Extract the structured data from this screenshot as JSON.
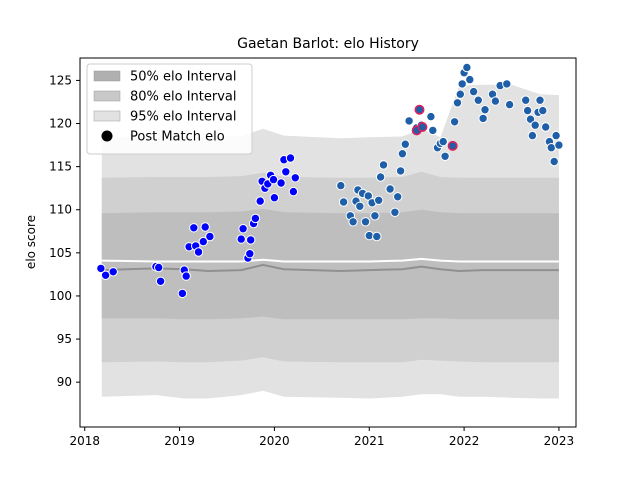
{
  "chart_data": {
    "type": "scatter",
    "title": "Gaetan Barlot: elo History",
    "xlabel": "",
    "ylabel": "elo score",
    "xlim": [
      2017.95,
      2023.18
    ],
    "ylim": [
      84.8,
      127.6
    ],
    "x_ticks": [
      2018,
      2019,
      2020,
      2021,
      2022,
      2023
    ],
    "x_tick_labels": [
      "2018",
      "2019",
      "2020",
      "2021",
      "2022",
      "2023"
    ],
    "y_ticks": [
      90,
      95,
      100,
      105,
      110,
      115,
      120,
      125
    ],
    "grid": false,
    "legend_position": "top-left",
    "legend": [
      {
        "label": "50% elo Interval",
        "kind": "patch",
        "color": "#b0b0b0"
      },
      {
        "label": "80% elo Interval",
        "kind": "patch",
        "color": "#c8c8c8"
      },
      {
        "label": "95% elo Interval",
        "kind": "patch",
        "color": "#e2e2e2"
      },
      {
        "label": "Post Match elo",
        "kind": "marker",
        "color": "#000000"
      }
    ],
    "band_x": [
      2018.18,
      2018.75,
      2019.05,
      2019.3,
      2019.65,
      2019.88,
      2020.1,
      2020.7,
      2021.0,
      2021.35,
      2021.55,
      2021.75,
      2021.95,
      2022.2,
      2022.5,
      2022.8,
      2023.0
    ],
    "intervals": [
      {
        "name": "95% elo Interval",
        "color": "#e2e2e2",
        "upper": [
          118.4,
          118.4,
          118.5,
          118.5,
          118.5,
          119.4,
          118.6,
          118.3,
          118.4,
          118.5,
          119.4,
          118.4,
          124.4,
          124.5,
          124.5,
          123.4,
          123.3
        ],
        "lower": [
          88.3,
          88.5,
          88.1,
          88.1,
          88.5,
          89.0,
          88.3,
          88.2,
          88.1,
          88.3,
          88.6,
          88.6,
          88.3,
          88.3,
          88.2,
          88.1,
          88.1
        ]
      },
      {
        "name": "80% elo Interval",
        "color": "#d0d0d0",
        "upper": [
          113.7,
          113.8,
          113.8,
          113.8,
          113.9,
          114.3,
          113.8,
          113.7,
          113.7,
          113.8,
          114.4,
          113.8,
          113.7,
          113.7,
          113.7,
          113.7,
          113.7
        ],
        "lower": [
          92.3,
          92.4,
          92.3,
          92.3,
          92.5,
          92.9,
          92.4,
          92.3,
          92.3,
          92.3,
          92.6,
          92.5,
          92.4,
          92.3,
          92.3,
          92.3,
          92.3
        ]
      },
      {
        "name": "50% elo Interval",
        "color": "#bebebe",
        "upper": [
          109.6,
          109.7,
          109.7,
          109.7,
          109.8,
          110.1,
          109.7,
          109.6,
          109.6,
          109.7,
          110.0,
          109.7,
          109.6,
          109.6,
          109.6,
          109.6,
          109.6
        ],
        "lower": [
          97.4,
          97.4,
          97.3,
          97.3,
          97.4,
          97.6,
          97.3,
          97.3,
          97.3,
          97.3,
          97.4,
          97.4,
          97.3,
          97.3,
          97.3,
          97.3,
          97.3
        ]
      }
    ],
    "median_line": {
      "color": "#909090",
      "y": [
        103.0,
        103.2,
        103.1,
        102.9,
        103.0,
        103.6,
        103.1,
        102.9,
        103.0,
        103.1,
        103.4,
        103.1,
        102.9,
        103.0,
        103.0,
        103.0,
        103.0
      ]
    },
    "mean_line": {
      "color": "#ffffff",
      "y": [
        104.1,
        104.0,
        104.0,
        104.0,
        104.0,
        104.2,
        104.0,
        104.0,
        104.0,
        104.1,
        104.3,
        104.1,
        104.0,
        104.0,
        104.0,
        104.0,
        104.0
      ]
    },
    "series": [
      {
        "color": "#0000ff",
        "edge": "#ffffff",
        "points": [
          [
            2018.17,
            103.2
          ],
          [
            2018.22,
            102.4
          ],
          [
            2018.3,
            102.8
          ],
          [
            2018.75,
            103.4
          ],
          [
            2018.78,
            103.3
          ],
          [
            2018.8,
            101.7
          ],
          [
            2019.03,
            100.3
          ],
          [
            2019.05,
            103.0
          ],
          [
            2019.07,
            102.3
          ],
          [
            2019.1,
            105.7
          ],
          [
            2019.15,
            107.9
          ],
          [
            2019.17,
            105.8
          ],
          [
            2019.2,
            105.1
          ],
          [
            2019.25,
            106.3
          ],
          [
            2019.27,
            108.0
          ],
          [
            2019.32,
            106.9
          ],
          [
            2019.65,
            106.6
          ],
          [
            2019.67,
            107.8
          ],
          [
            2019.72,
            104.4
          ],
          [
            2019.74,
            104.9
          ],
          [
            2019.75,
            106.5
          ],
          [
            2019.78,
            108.4
          ],
          [
            2019.8,
            109.0
          ],
          [
            2019.85,
            111.0
          ],
          [
            2019.87,
            113.3
          ],
          [
            2019.9,
            112.5
          ],
          [
            2019.93,
            113.0
          ],
          [
            2019.96,
            114.0
          ],
          [
            2019.99,
            113.5
          ],
          [
            2020.0,
            111.4
          ],
          [
            2020.07,
            113.1
          ],
          [
            2020.1,
            115.8
          ],
          [
            2020.12,
            114.4
          ],
          [
            2020.17,
            116.0
          ],
          [
            2020.2,
            112.1
          ],
          [
            2020.22,
            113.7
          ]
        ]
      },
      {
        "color": "#1f5fa8",
        "edge": "#ffffff",
        "points": [
          [
            2020.7,
            112.8
          ],
          [
            2020.73,
            110.9
          ],
          [
            2020.8,
            109.3
          ],
          [
            2020.83,
            108.6
          ],
          [
            2020.86,
            111.0
          ],
          [
            2020.88,
            112.3
          ],
          [
            2020.9,
            110.4
          ],
          [
            2020.93,
            111.9
          ],
          [
            2020.96,
            108.6
          ],
          [
            2020.99,
            111.6
          ],
          [
            2021.0,
            107.0
          ],
          [
            2021.03,
            110.8
          ],
          [
            2021.06,
            109.3
          ],
          [
            2021.08,
            106.9
          ],
          [
            2021.1,
            111.1
          ],
          [
            2021.12,
            113.8
          ],
          [
            2021.15,
            115.2
          ],
          [
            2021.22,
            112.4
          ],
          [
            2021.27,
            109.7
          ],
          [
            2021.3,
            111.5
          ],
          [
            2021.33,
            114.5
          ],
          [
            2021.35,
            116.5
          ],
          [
            2021.38,
            117.6
          ],
          [
            2021.42,
            120.3
          ],
          [
            2021.5,
            119.5
          ],
          [
            2021.55,
            119.8
          ],
          [
            2021.65,
            120.8
          ],
          [
            2021.67,
            119.2
          ],
          [
            2021.72,
            117.2
          ],
          [
            2021.75,
            117.7
          ],
          [
            2021.78,
            117.9
          ],
          [
            2021.8,
            116.2
          ],
          [
            2021.9,
            120.2
          ],
          [
            2021.93,
            122.4
          ],
          [
            2021.96,
            123.4
          ],
          [
            2021.98,
            124.6
          ],
          [
            2022.0,
            125.9
          ],
          [
            2022.03,
            126.5
          ],
          [
            2022.06,
            125.1
          ],
          [
            2022.1,
            123.7
          ],
          [
            2022.15,
            122.7
          ],
          [
            2022.2,
            120.6
          ],
          [
            2022.22,
            121.6
          ],
          [
            2022.3,
            123.4
          ],
          [
            2022.33,
            122.6
          ],
          [
            2022.38,
            124.4
          ],
          [
            2022.45,
            124.6
          ],
          [
            2022.48,
            122.2
          ],
          [
            2022.65,
            122.7
          ],
          [
            2022.67,
            121.5
          ],
          [
            2022.7,
            120.5
          ],
          [
            2022.72,
            118.6
          ],
          [
            2022.75,
            119.8
          ],
          [
            2022.78,
            121.3
          ],
          [
            2022.8,
            122.7
          ],
          [
            2022.83,
            121.5
          ],
          [
            2022.86,
            119.6
          ],
          [
            2022.9,
            117.9
          ],
          [
            2022.92,
            117.2
          ],
          [
            2022.95,
            115.6
          ],
          [
            2022.97,
            118.6
          ],
          [
            2023.0,
            117.5
          ]
        ]
      },
      {
        "color": "#1f5fa8",
        "edge": "#e0205a",
        "points": [
          [
            2021.5,
            119.2
          ],
          [
            2021.53,
            121.6
          ],
          [
            2021.56,
            119.6
          ],
          [
            2021.88,
            117.4
          ]
        ]
      }
    ]
  }
}
